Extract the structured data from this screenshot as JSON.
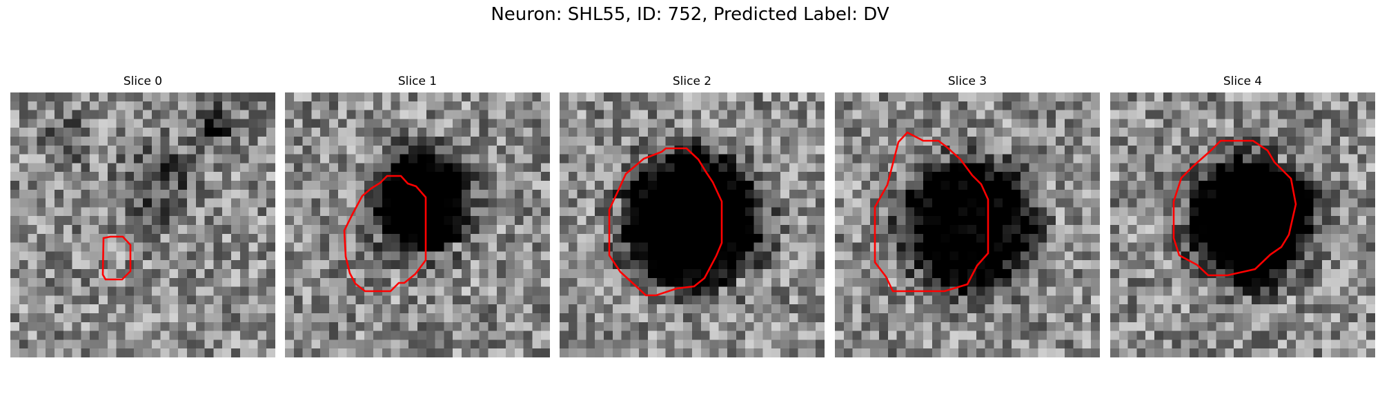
{
  "figure": {
    "title": "Neuron: SHL55, ID: 752, Predicted Label: DV",
    "contour_color": "#ff0000",
    "colormap": "gray"
  },
  "panels": [
    {
      "title": "Slice 0"
    },
    {
      "title": "Slice 1"
    },
    {
      "title": "Slice 2"
    },
    {
      "title": "Slice 3"
    },
    {
      "title": "Slice 4"
    }
  ]
}
